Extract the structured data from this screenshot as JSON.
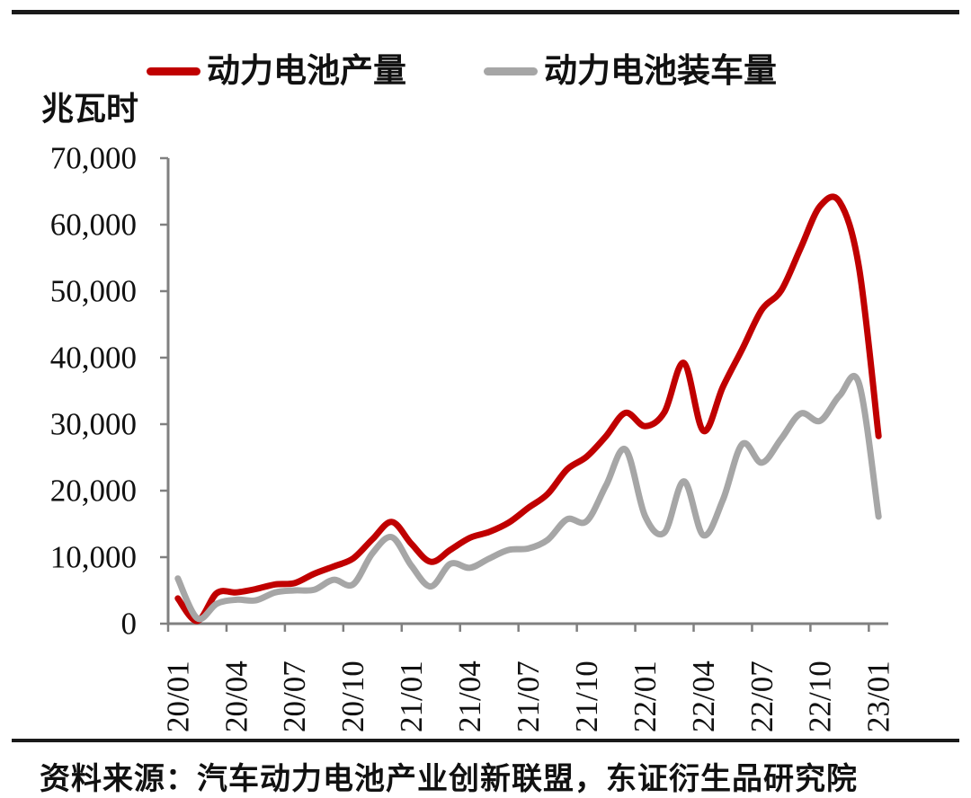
{
  "page": {
    "source_note": "资料来源：汽车动力电池产业创新联盟，东证衍生品研究院"
  },
  "chart": {
    "unit_label": "兆瓦时"
  },
  "chart_data": {
    "type": "line",
    "title": "",
    "xlabel": "",
    "ylabel": "兆瓦时",
    "smooth": true,
    "grid": false,
    "legend_position": "top",
    "ylim": [
      0,
      70000
    ],
    "y_tick_step": 10000,
    "y_ticks": [
      0,
      10000,
      20000,
      30000,
      40000,
      50000,
      60000,
      70000
    ],
    "x_tick_every": 3,
    "categories": [
      "20/01",
      "20/02",
      "20/03",
      "20/04",
      "20/05",
      "20/06",
      "20/07",
      "20/08",
      "20/09",
      "20/10",
      "20/11",
      "20/12",
      "21/01",
      "21/02",
      "21/03",
      "21/04",
      "21/05",
      "21/06",
      "21/07",
      "21/08",
      "21/09",
      "21/10",
      "21/11",
      "21/12",
      "22/01",
      "22/02",
      "22/03",
      "22/04",
      "22/05",
      "22/06",
      "22/07",
      "22/08",
      "22/09",
      "22/10",
      "22/11",
      "22/12",
      "23/01"
    ],
    "series": [
      {
        "name": "动力电池产量",
        "color": "#c00000",
        "values": [
          3800,
          400,
          4600,
          4700,
          5200,
          5900,
          6100,
          7500,
          8600,
          9800,
          12700,
          15300,
          12000,
          9300,
          11100,
          12900,
          13800,
          15200,
          17400,
          19500,
          23200,
          25100,
          28200,
          31700,
          29700,
          31800,
          39200,
          29000,
          35600,
          41300,
          47200,
          50100,
          56500,
          62800,
          63400,
          53500,
          28200
        ]
      },
      {
        "name": "动力电池装车量",
        "color": "#a6a6a6",
        "values": [
          6800,
          800,
          3000,
          3600,
          3500,
          4700,
          5000,
          5100,
          6600,
          5900,
          10600,
          13000,
          8700,
          5600,
          9000,
          8400,
          9800,
          11100,
          11300,
          12600,
          15700,
          15400,
          20800,
          26200,
          16200,
          13700,
          21400,
          13300,
          18600,
          27000,
          24200,
          27800,
          31600,
          30500,
          34300,
          36100,
          16100
        ]
      }
    ]
  }
}
